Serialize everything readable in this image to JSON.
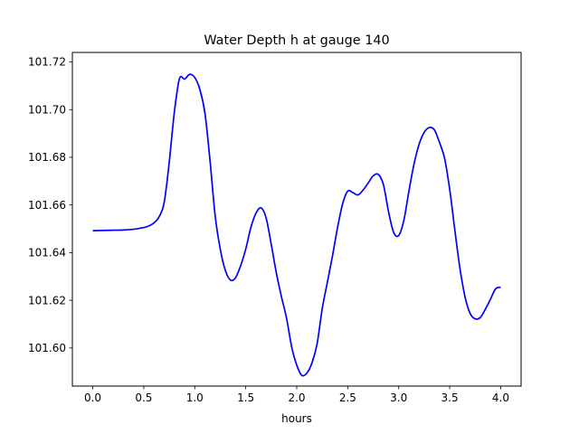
{
  "chart_data": {
    "type": "line",
    "title": "Water Depth h at gauge 140",
    "xlabel": "hours",
    "ylabel": "",
    "xlim": [
      -0.2,
      4.2
    ],
    "ylim": [
      101.584,
      101.724
    ],
    "xticks": [
      0.0,
      0.5,
      1.0,
      1.5,
      2.0,
      2.5,
      3.0,
      3.5,
      4.0
    ],
    "xtick_labels": [
      "0.0",
      "0.5",
      "1.0",
      "1.5",
      "2.0",
      "2.5",
      "3.0",
      "3.5",
      "4.0"
    ],
    "yticks": [
      101.6,
      101.62,
      101.64,
      101.66,
      101.68,
      101.7,
      101.72
    ],
    "ytick_labels": [
      "101.60",
      "101.62",
      "101.64",
      "101.66",
      "101.68",
      "101.70",
      "101.72"
    ],
    "grid": false,
    "series": [
      {
        "color": "#0000ff",
        "x": [
          0.0,
          0.1,
          0.2,
          0.3,
          0.4,
          0.5,
          0.55,
          0.6,
          0.65,
          0.7,
          0.75,
          0.8,
          0.85,
          0.9,
          0.95,
          1.0,
          1.05,
          1.1,
          1.15,
          1.2,
          1.25,
          1.3,
          1.35,
          1.4,
          1.45,
          1.5,
          1.55,
          1.6,
          1.65,
          1.7,
          1.75,
          1.8,
          1.85,
          1.9,
          1.95,
          2.0,
          2.05,
          2.1,
          2.15,
          2.2,
          2.25,
          2.3,
          2.35,
          2.4,
          2.45,
          2.5,
          2.55,
          2.6,
          2.65,
          2.7,
          2.75,
          2.8,
          2.85,
          2.9,
          2.95,
          3.0,
          3.05,
          3.1,
          3.15,
          3.2,
          3.25,
          3.3,
          3.35,
          3.4,
          3.45,
          3.5,
          3.55,
          3.6,
          3.65,
          3.7,
          3.75,
          3.8,
          3.85,
          3.9,
          3.95,
          4.0
        ],
        "y": [
          101.6492,
          101.6493,
          101.6494,
          101.6495,
          101.6498,
          101.6505,
          101.6512,
          101.6525,
          101.655,
          101.661,
          101.678,
          101.699,
          101.713,
          101.7128,
          101.7148,
          101.7135,
          101.7085,
          101.6985,
          101.6785,
          101.6555,
          101.6415,
          101.6325,
          101.6285,
          101.6295,
          101.6345,
          101.6415,
          101.6505,
          101.6565,
          101.6588,
          101.6545,
          101.6435,
          101.6315,
          101.6215,
          101.6125,
          101.6005,
          101.5928,
          101.5885,
          101.5895,
          101.5938,
          101.6018,
          101.6165,
          101.6275,
          101.6385,
          101.6505,
          101.6605,
          101.6658,
          101.6652,
          101.6642,
          101.6662,
          101.6692,
          101.6722,
          101.6728,
          101.6685,
          101.6572,
          101.6485,
          101.6472,
          101.6535,
          101.6658,
          101.6772,
          101.6855,
          101.6905,
          101.6925,
          101.6915,
          101.6862,
          101.6795,
          101.6665,
          101.6495,
          101.6335,
          101.6215,
          101.6145,
          101.6122,
          101.6128,
          101.6163,
          101.6205,
          101.6248,
          101.6255
        ]
      }
    ]
  }
}
